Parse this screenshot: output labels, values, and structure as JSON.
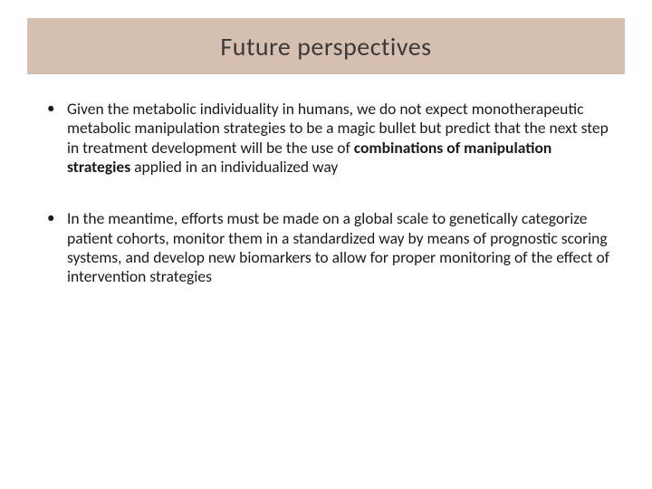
{
  "colors": {
    "banner_bg": "#d6beb1",
    "text": "#1a1a1a",
    "title_text": "#3a3a3a",
    "page_bg": "#ffffff"
  },
  "typography": {
    "title_fontsize": 28,
    "body_fontsize": 17.5,
    "line_height": 1.22,
    "font_family": "Calibri"
  },
  "title": "Future perspectives",
  "bullets": [
    {
      "pre": "Given the metabolic individuality in humans, we do not expect monotherapeutic metabolic manipulation strategies to be a magic bullet but predict that the next step in treatment development will be the use of ",
      "bold": "combinations of manipulation strategies",
      "post": " applied in an individualized way"
    },
    {
      "pre": "In the meantime, efforts must be made on a global scale to genetically categorize patient cohorts, monitor them in a standardized way by means of prognostic scoring systems, and develop new biomarkers to allow for proper monitoring of the effect of intervention strategies",
      "bold": "",
      "post": ""
    }
  ]
}
